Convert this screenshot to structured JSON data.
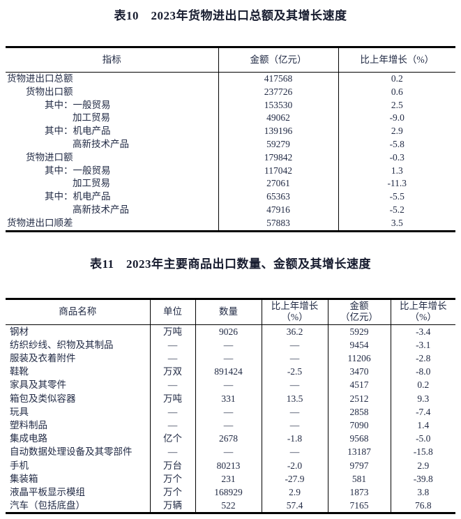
{
  "table10": {
    "title": "表10　2023年货物进出口总额及其增长速度",
    "columns": [
      "指标",
      "金额（亿元）",
      "比上年增长（%）"
    ],
    "rows": [
      {
        "indicator": "货物进出口总额",
        "indent": 0,
        "amount": "417568",
        "growth": "0.2"
      },
      {
        "indicator": "货物出口额",
        "indent": 1,
        "amount": "237726",
        "growth": "0.6"
      },
      {
        "indicator": "其中：一般贸易",
        "indent": 2,
        "amount": "153530",
        "growth": "2.5"
      },
      {
        "indicator": "加工贸易",
        "indent": 3,
        "amount": "49062",
        "growth": "-9.0"
      },
      {
        "indicator": "其中：机电产品",
        "indent": 2,
        "amount": "139196",
        "growth": "2.9"
      },
      {
        "indicator": "高新技术产品",
        "indent": 3,
        "amount": "59279",
        "growth": "-5.8"
      },
      {
        "indicator": "货物进口额",
        "indent": 1,
        "amount": "179842",
        "growth": "-0.3"
      },
      {
        "indicator": "其中：一般贸易",
        "indent": 2,
        "amount": "117042",
        "growth": "1.3"
      },
      {
        "indicator": "加工贸易",
        "indent": 3,
        "amount": "27061",
        "growth": "-11.3"
      },
      {
        "indicator": "其中：机电产品",
        "indent": 2,
        "amount": "65363",
        "growth": "-5.5"
      },
      {
        "indicator": "高新技术产品",
        "indent": 3,
        "amount": "47916",
        "growth": "-5.2"
      },
      {
        "indicator": "货物进出口顺差",
        "indent": 0,
        "amount": "57883",
        "growth": "3.5"
      }
    ]
  },
  "table11": {
    "title": "表11　2023年主要商品出口数量、金额及其增长速度",
    "columns": [
      {
        "line1": "商品名称",
        "line2": ""
      },
      {
        "line1": "单位",
        "line2": ""
      },
      {
        "line1": "数量",
        "line2": ""
      },
      {
        "line1": "比上年增长",
        "line2": "（%）"
      },
      {
        "line1": "金额",
        "line2": "（亿元）"
      },
      {
        "line1": "比上年增长",
        "line2": "（%）"
      }
    ],
    "rows": [
      [
        "钢材",
        "万吨",
        "9026",
        "36.2",
        "5929",
        "-3.4"
      ],
      [
        "纺织纱线、织物及其制品",
        "—",
        "—",
        "—",
        "9454",
        "-3.1"
      ],
      [
        "服装及衣着附件",
        "—",
        "—",
        "—",
        "11206",
        "-2.8"
      ],
      [
        "鞋靴",
        "万双",
        "891424",
        "-2.5",
        "3470",
        "-8.0"
      ],
      [
        "家具及其零件",
        "—",
        "—",
        "—",
        "4517",
        "0.2"
      ],
      [
        "箱包及类似容器",
        "万吨",
        "331",
        "13.5",
        "2512",
        "9.3"
      ],
      [
        "玩具",
        "—",
        "—",
        "—",
        "2858",
        "-7.4"
      ],
      [
        "塑料制品",
        "—",
        "—",
        "—",
        "7090",
        "1.4"
      ],
      [
        "集成电路",
        "亿个",
        "2678",
        "-1.8",
        "9568",
        "-5.0"
      ],
      [
        "自动数据处理设备及其零部件",
        "—",
        "—",
        "—",
        "13187",
        "-15.8"
      ],
      [
        "手机",
        "万台",
        "80213",
        "-2.0",
        "9797",
        "2.9"
      ],
      [
        "集装箱",
        "万个",
        "231",
        "-27.9",
        "581",
        "-39.8"
      ],
      [
        "液晶平板显示模组",
        "万个",
        "168929",
        "2.9",
        "1873",
        "3.8"
      ],
      [
        "汽车（包括底盘）",
        "万辆",
        "522",
        "57.4",
        "7165",
        "76.8"
      ]
    ]
  }
}
